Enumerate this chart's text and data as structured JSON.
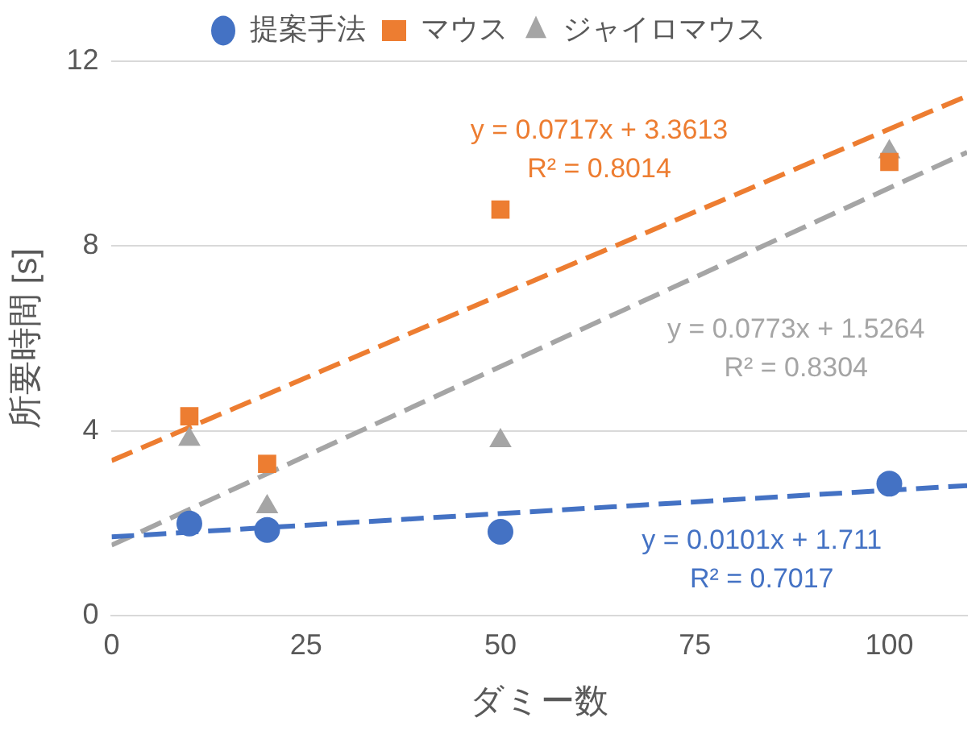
{
  "chart_data": {
    "type": "scatter",
    "xlabel": "ダミー数",
    "ylabel": "所要時間 [s]",
    "xlim": [
      0,
      110
    ],
    "xticks": [
      0,
      25,
      50,
      75,
      100
    ],
    "ylim": [
      0,
      12
    ],
    "yticks": [
      0,
      4,
      8,
      12
    ],
    "grid": "y",
    "legend": "top",
    "series": [
      {
        "name": "提案手法",
        "color": "#4472c4",
        "marker": "circle",
        "x": [
          10,
          20,
          50,
          100
        ],
        "values": [
          2.0,
          1.86,
          1.82,
          2.86
        ]
      },
      {
        "name": "マウス",
        "color": "#ed7d31",
        "marker": "square",
        "x": [
          10,
          20,
          50,
          100
        ],
        "values": [
          4.32,
          3.29,
          8.79,
          9.82
        ]
      },
      {
        "name": "ジャイロマウス",
        "color": "#a5a5a5",
        "marker": "triangle",
        "x": [
          10,
          20,
          50,
          100
        ],
        "values": [
          3.82,
          2.36,
          3.79,
          10.04
        ]
      },
      {
        "type": "line",
        "color": "#4472c4",
        "line_style": "dashed",
        "marker": "none",
        "x": [
          0,
          110
        ],
        "values": [
          1.71,
          2.82
        ]
      },
      {
        "type": "line",
        "color": "#ed7d31",
        "line_style": "dashed",
        "marker": "none",
        "x": [
          0,
          110
        ],
        "values": [
          3.36,
          11.25
        ]
      },
      {
        "type": "line",
        "color": "#a5a5a5",
        "line_style": "dashed",
        "marker": "none",
        "x": [
          0,
          110
        ],
        "values": [
          1.53,
          10.03
        ]
      }
    ],
    "annotations": [
      "y = 0.0101x + 1.711\nR² = 0.7017",
      "y = 0.0717x + 3.3613\nR² = 0.8014",
      "y = 0.0773x + 1.5264\nR² = 0.8304"
    ]
  }
}
